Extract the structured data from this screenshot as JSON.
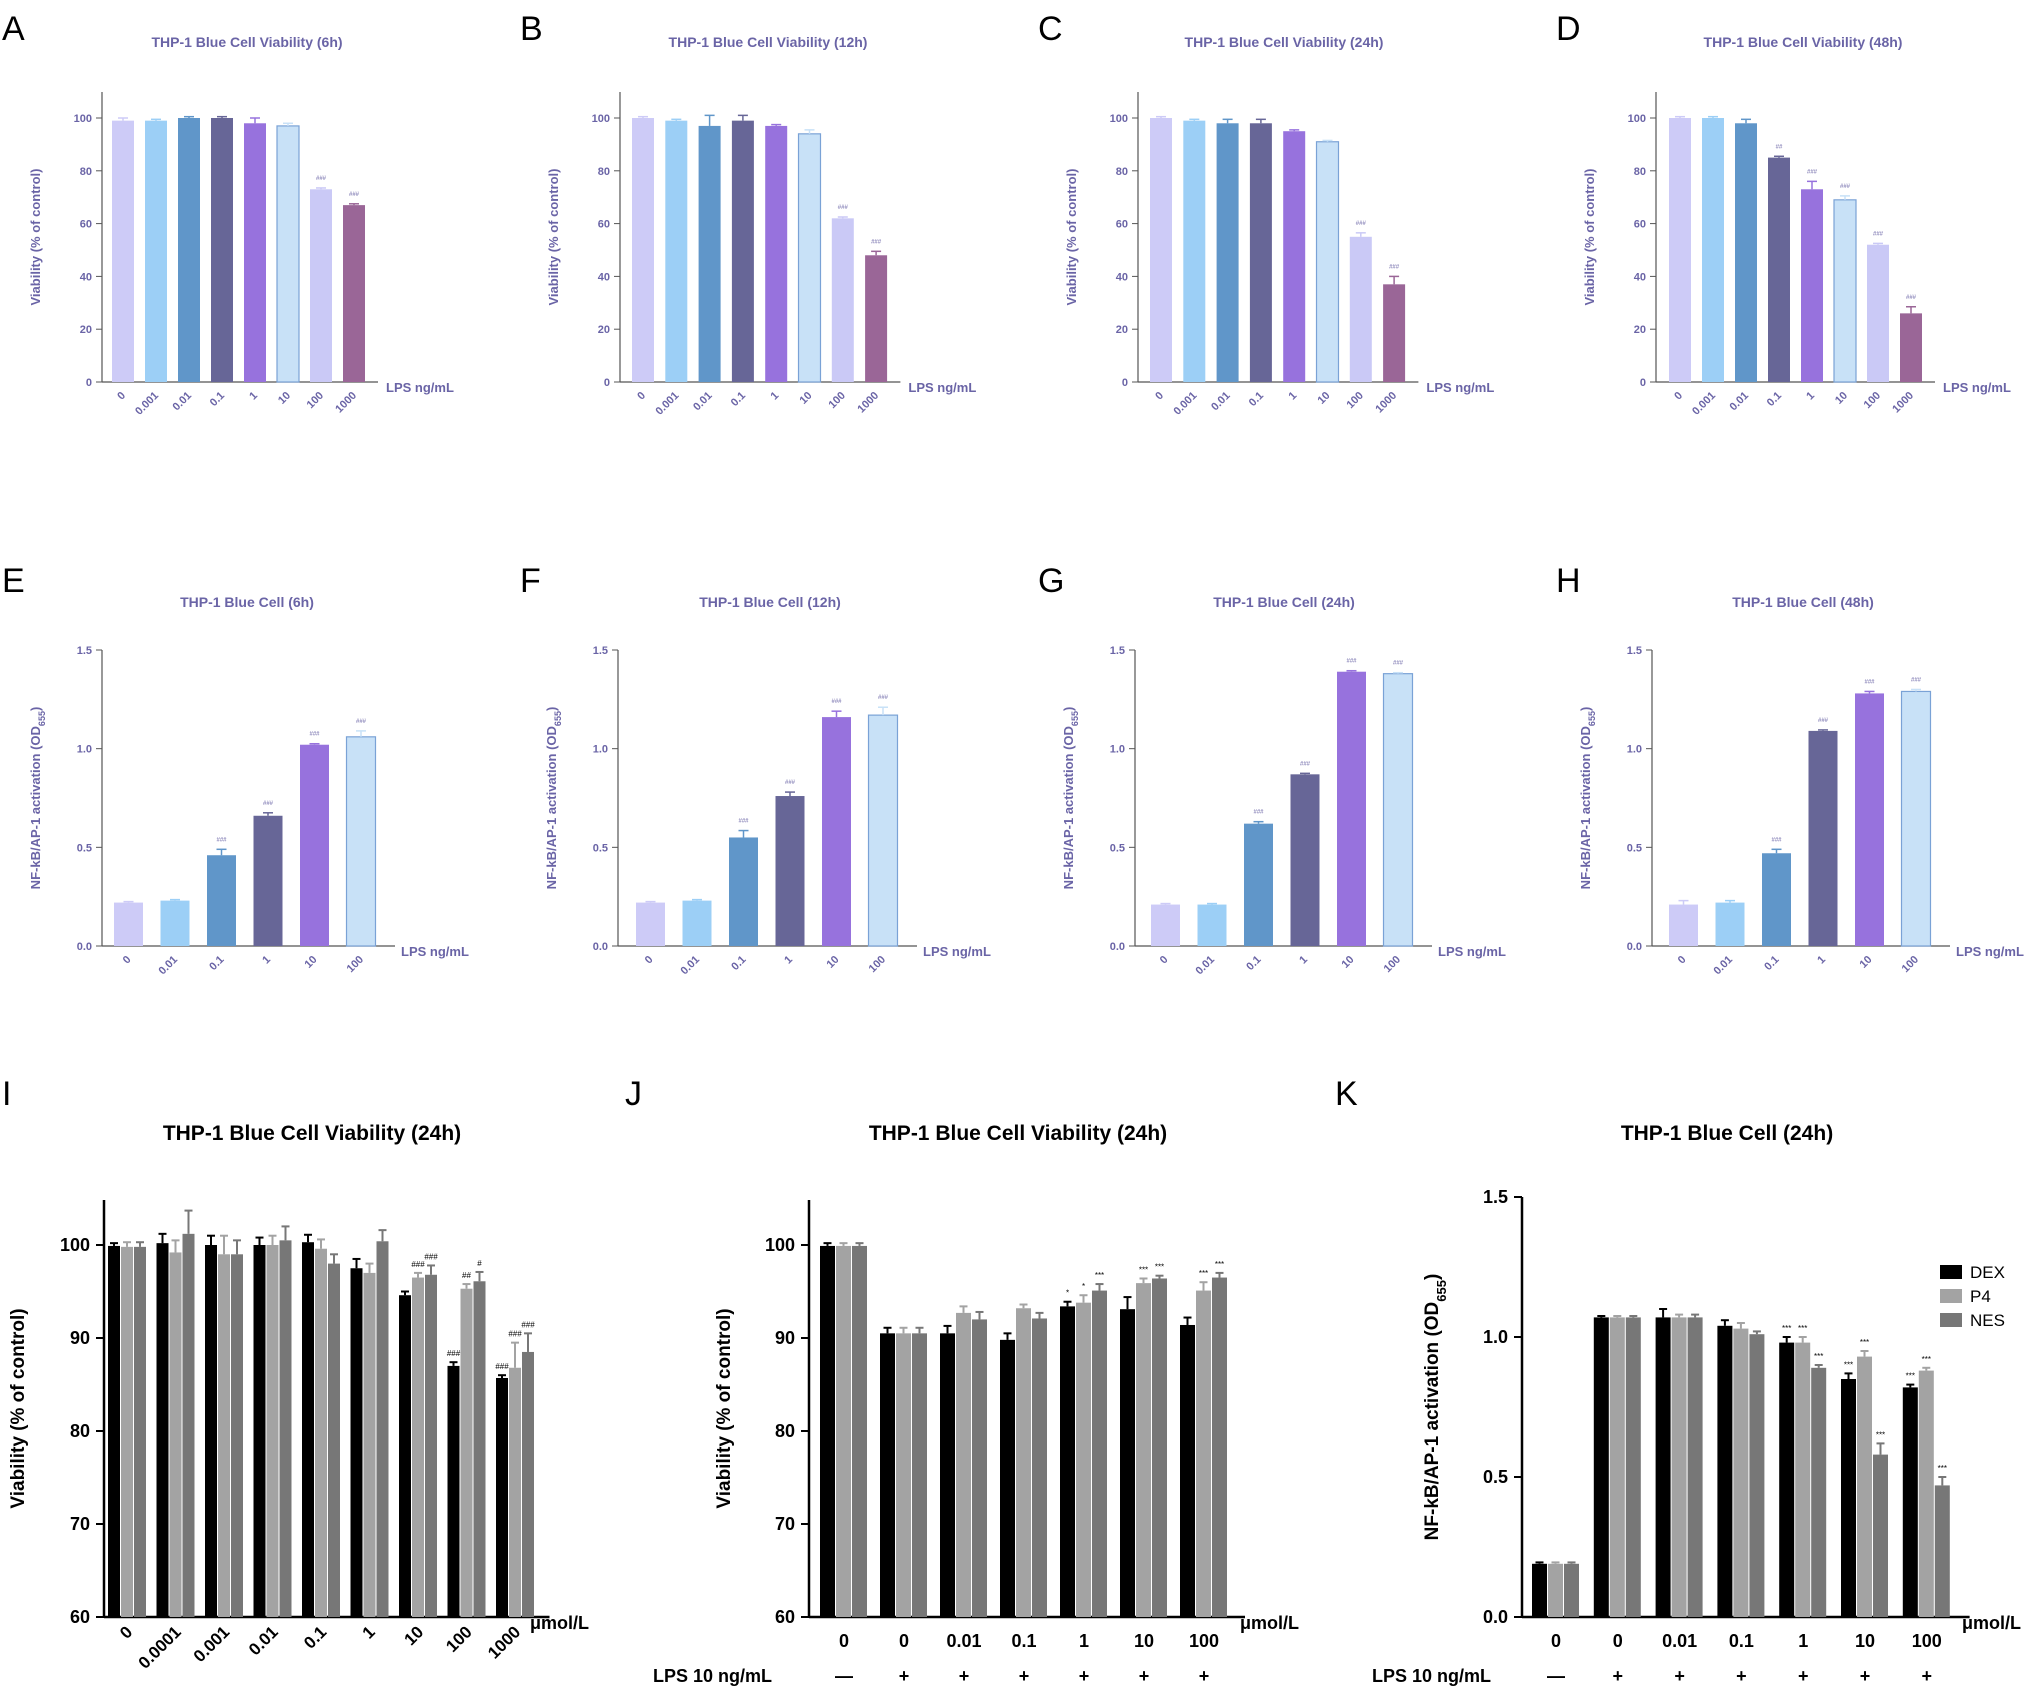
{
  "figure": {
    "xunit_lps": "LPS ng/mL",
    "xunit_umol": "μmol/L",
    "lps_row_label": "LPS 10 ng/mL"
  },
  "colors": {
    "purple_text": "#6a64a6",
    "palette_top": [
      "#cdcbf7",
      "#9ccff6",
      "#6096c9",
      "#676697",
      "#9772dd",
      "#c8e1f7",
      "#cac9f6",
      "#9a6697"
    ],
    "palette_mid": [
      "#cdcbf7",
      "#9ccff6",
      "#6096c9",
      "#676697",
      "#9772dd",
      "#c8e1f7"
    ],
    "series_bottom": [
      "#000000",
      "#a3a3a3",
      "#777777"
    ]
  },
  "chart_data": [
    {
      "panel": "A",
      "type": "bar",
      "title": "THP-1 Blue Cell Viability (6h)",
      "ylabel": "Viability (% of control)",
      "xlabel": "LPS ng/mL",
      "ylim": [
        0,
        110
      ],
      "yticks": [
        "0",
        "20",
        "40",
        "60",
        "80",
        "100"
      ],
      "categories": [
        "0",
        "0.001",
        "0.01",
        "0.1",
        "1",
        "10",
        "100",
        "1000"
      ],
      "values": [
        99,
        99,
        100,
        100,
        98,
        97,
        73,
        67
      ],
      "errors": [
        1,
        0.5,
        0.5,
        0.5,
        2,
        1,
        0.5,
        0.5
      ],
      "annotations": [
        "",
        "",
        "",
        "",
        "",
        "",
        "###",
        "###"
      ]
    },
    {
      "panel": "B",
      "type": "bar",
      "title": "THP-1 Blue Cell Viability (12h)",
      "ylabel": "Viability (% of control)",
      "xlabel": "LPS ng/mL",
      "ylim": [
        0,
        110
      ],
      "yticks": [
        "0",
        "20",
        "40",
        "60",
        "80",
        "100"
      ],
      "categories": [
        "0",
        "0.001",
        "0.01",
        "0.1",
        "1",
        "10",
        "100",
        "1000"
      ],
      "values": [
        100,
        99,
        97,
        99,
        97,
        94,
        62,
        48
      ],
      "errors": [
        0.5,
        0.5,
        4,
        2,
        0.5,
        1.5,
        0.5,
        1.5
      ],
      "annotations": [
        "",
        "",
        "",
        "",
        "",
        "",
        "###",
        "###"
      ]
    },
    {
      "panel": "C",
      "type": "bar",
      "title": "THP-1 Blue Cell Viability (24h)",
      "ylabel": "Viability (% of control)",
      "xlabel": "LPS ng/mL",
      "ylim": [
        0,
        110
      ],
      "yticks": [
        "0",
        "20",
        "40",
        "60",
        "80",
        "100"
      ],
      "categories": [
        "0",
        "0.001",
        "0.01",
        "0.1",
        "1",
        "10",
        "100",
        "1000"
      ],
      "values": [
        100,
        99,
        98,
        98,
        95,
        91,
        55,
        37
      ],
      "errors": [
        0.5,
        0.5,
        1.5,
        1.5,
        0.5,
        0.5,
        1.5,
        3
      ],
      "annotations": [
        "",
        "",
        "",
        "",
        "",
        "",
        "###",
        "###"
      ]
    },
    {
      "panel": "D",
      "type": "bar",
      "title": "THP-1 Blue Cell Viability (48h)",
      "ylabel": "Viability (% of control)",
      "xlabel": "LPS ng/mL",
      "ylim": [
        0,
        110
      ],
      "yticks": [
        "0",
        "20",
        "40",
        "60",
        "80",
        "100"
      ],
      "categories": [
        "0",
        "0.001",
        "0.01",
        "0.1",
        "1",
        "10",
        "100",
        "1000"
      ],
      "values": [
        100,
        100,
        98,
        85,
        73,
        69,
        52,
        26
      ],
      "errors": [
        0.5,
        0.5,
        1.5,
        0.5,
        3,
        1.5,
        0.5,
        2.5
      ],
      "annotations": [
        "",
        "",
        "",
        "##",
        "###",
        "###",
        "###",
        "###"
      ]
    },
    {
      "panel": "E",
      "type": "bar",
      "title": "THP-1 Blue Cell (6h)",
      "ylabel": "NF-kB/AP-1 activation (OD",
      "ylabel_sub": "655",
      "ylabel_end": ")",
      "xlabel": "LPS ng/mL",
      "ylim": [
        0,
        1.5
      ],
      "yticks": [
        "0.0",
        "0.5",
        "1.0",
        "1.5"
      ],
      "categories": [
        "0",
        "0.01",
        "0.1",
        "1",
        "10",
        "100"
      ],
      "values": [
        0.22,
        0.23,
        0.46,
        0.66,
        1.02,
        1.06
      ],
      "errors": [
        0.005,
        0.005,
        0.03,
        0.015,
        0.005,
        0.03
      ],
      "annotations": [
        "",
        "",
        "###",
        "###",
        "###",
        "###"
      ]
    },
    {
      "panel": "F",
      "type": "bar",
      "title": "THP-1 Blue Cell (12h)",
      "ylabel": "NF-kB/AP-1 activation (OD",
      "ylabel_sub": "655",
      "ylabel_end": ")",
      "xlabel": "LPS ng/mL",
      "ylim": [
        0,
        1.5
      ],
      "yticks": [
        "0.0",
        "0.5",
        "1.0",
        "1.5"
      ],
      "categories": [
        "0",
        "0.01",
        "0.1",
        "1",
        "10",
        "100"
      ],
      "values": [
        0.22,
        0.23,
        0.55,
        0.76,
        1.16,
        1.17
      ],
      "errors": [
        0.005,
        0.005,
        0.035,
        0.02,
        0.03,
        0.04
      ],
      "annotations": [
        "",
        "",
        "###",
        "###",
        "###",
        "###"
      ]
    },
    {
      "panel": "G",
      "type": "bar",
      "title": "THP-1 Blue Cell (24h)",
      "ylabel": "NF-kB/AP-1 activation (OD",
      "ylabel_sub": "655",
      "ylabel_end": ")",
      "xlabel": "LPS ng/mL",
      "ylim": [
        0,
        1.5
      ],
      "yticks": [
        "0.0",
        "0.5",
        "1.0",
        "1.5"
      ],
      "categories": [
        "0",
        "0.01",
        "0.1",
        "1",
        "10",
        "100"
      ],
      "values": [
        0.21,
        0.21,
        0.62,
        0.87,
        1.39,
        1.38
      ],
      "errors": [
        0.005,
        0.005,
        0.01,
        0.005,
        0.005,
        0.005
      ],
      "annotations": [
        "",
        "",
        "###",
        "###",
        "###",
        "###"
      ]
    },
    {
      "panel": "H",
      "type": "bar",
      "title": "THP-1 Blue Cell (48h)",
      "ylabel": "NF-kB/AP-1 activation (OD",
      "ylabel_sub": "655",
      "ylabel_end": ")",
      "xlabel": "LPS ng/mL",
      "ylim": [
        0,
        1.5
      ],
      "yticks": [
        "0.0",
        "0.5",
        "1.0",
        "1.5"
      ],
      "categories": [
        "0",
        "0.01",
        "0.1",
        "1",
        "10",
        "100"
      ],
      "values": [
        0.21,
        0.22,
        0.47,
        1.09,
        1.28,
        1.29
      ],
      "errors": [
        0.02,
        0.01,
        0.02,
        0.005,
        0.01,
        0.01
      ],
      "annotations": [
        "",
        "",
        "###",
        "###",
        "###",
        "###"
      ]
    },
    {
      "panel": "I",
      "type": "bar",
      "title": "THP-1 Blue Cell Viability (24h)",
      "ylabel": "Viability (% of control)",
      "xlabel": "μmol/L",
      "ylim": [
        60,
        105
      ],
      "yticks": [
        "60",
        "70",
        "80",
        "90",
        "100"
      ],
      "categories": [
        "0",
        "0.0001",
        "0.001",
        "0.01",
        "0.1",
        "1",
        "10",
        "100",
        "1000"
      ],
      "series": [
        {
          "name": "DEX",
          "values": [
            99.9,
            100.2,
            100,
            100,
            100.3,
            97.5,
            94.6,
            87,
            85.7
          ],
          "errors": [
            0.3,
            1,
            1,
            0.8,
            0.8,
            1,
            0.4,
            0.4,
            0.3
          ],
          "annotations": [
            "",
            "",
            "",
            "",
            "",
            "",
            "",
            "###",
            "###"
          ]
        },
        {
          "name": "P4",
          "values": [
            99.8,
            99.2,
            99,
            100,
            99.6,
            97,
            96.5,
            95.3,
            86.8
          ],
          "errors": [
            0.5,
            1.3,
            2,
            1,
            1,
            1,
            0.5,
            0.5,
            2.7
          ],
          "annotations": [
            "",
            "",
            "",
            "",
            "",
            "",
            "###",
            "##",
            "###"
          ]
        },
        {
          "name": "NES",
          "values": [
            99.8,
            101.2,
            99,
            100.5,
            98,
            100.4,
            96.8,
            96.1,
            88.5
          ],
          "errors": [
            0.5,
            2.5,
            1.5,
            1.5,
            1,
            1.2,
            1,
            1,
            2
          ],
          "annotations": [
            "",
            "",
            "",
            "",
            "",
            "",
            "###",
            "#",
            "###"
          ]
        }
      ]
    },
    {
      "panel": "J",
      "type": "bar",
      "title": "THP-1 Blue Cell Viability (24h)",
      "ylabel": "Viability (% of control)",
      "xlabel": "μmol/L",
      "ylim": [
        60,
        105
      ],
      "yticks": [
        "60",
        "70",
        "80",
        "90",
        "100"
      ],
      "categories": [
        "0",
        "0",
        "0.01",
        "0.1",
        "1",
        "10",
        "100"
      ],
      "lps": [
        "—",
        "+",
        "+",
        "+",
        "+",
        "+",
        "+"
      ],
      "series": [
        {
          "name": "DEX",
          "values": [
            99.9,
            90.5,
            90.5,
            89.8,
            93.4,
            93.1,
            91.4
          ],
          "errors": [
            0.3,
            0.6,
            0.8,
            0.7,
            0.5,
            1.3,
            0.8
          ],
          "annotations": [
            "",
            "",
            "",
            "",
            "*",
            "",
            ""
          ]
        },
        {
          "name": "P4",
          "values": [
            99.9,
            90.5,
            92.7,
            93.2,
            93.8,
            95.9,
            95.1
          ],
          "errors": [
            0.3,
            0.6,
            0.7,
            0.4,
            0.8,
            0.5,
            0.9
          ],
          "annotations": [
            "",
            "",
            "",
            "",
            "*",
            "***",
            "***"
          ]
        },
        {
          "name": "NES",
          "values": [
            99.9,
            90.5,
            92,
            92.1,
            95.1,
            96.4,
            96.5
          ],
          "errors": [
            0.3,
            0.6,
            0.8,
            0.6,
            0.7,
            0.3,
            0.5
          ],
          "annotations": [
            "",
            "",
            "",
            "",
            "***",
            "***",
            "***"
          ]
        }
      ]
    },
    {
      "panel": "K",
      "type": "bar",
      "title": "THP-1 Blue Cell (24h)",
      "ylabel": "NF-kB/AP-1 activation (OD",
      "ylabel_sub": "655",
      "ylabel_end": ")",
      "xlabel": "μmol/L",
      "ylim": [
        0,
        1.5
      ],
      "yticks": [
        "0.0",
        "0.5",
        "1.0",
        "1.5"
      ],
      "categories": [
        "0",
        "0",
        "0.01",
        "0.1",
        "1",
        "10",
        "100"
      ],
      "lps": [
        "—",
        "+",
        "+",
        "+",
        "+",
        "+",
        "+"
      ],
      "legend": [
        "DEX",
        "P4",
        "NES"
      ],
      "series": [
        {
          "name": "DEX",
          "values": [
            0.19,
            1.07,
            1.07,
            1.04,
            0.98,
            0.85,
            0.82
          ],
          "errors": [
            0.005,
            0.005,
            0.03,
            0.02,
            0.02,
            0.02,
            0.01
          ],
          "annotations": [
            "",
            "",
            "",
            "",
            "***",
            "***",
            "***"
          ]
        },
        {
          "name": "P4",
          "values": [
            0.19,
            1.07,
            1.07,
            1.03,
            0.98,
            0.93,
            0.88
          ],
          "errors": [
            0.005,
            0.005,
            0.01,
            0.02,
            0.02,
            0.02,
            0.01
          ],
          "annotations": [
            "",
            "",
            "",
            "",
            "***",
            "***",
            "***"
          ]
        },
        {
          "name": "NES",
          "values": [
            0.19,
            1.07,
            1.07,
            1.01,
            0.89,
            0.58,
            0.47
          ],
          "errors": [
            0.005,
            0.005,
            0.01,
            0.01,
            0.01,
            0.04,
            0.03
          ],
          "annotations": [
            "",
            "",
            "",
            "",
            "***",
            "***",
            "***"
          ]
        }
      ]
    }
  ]
}
